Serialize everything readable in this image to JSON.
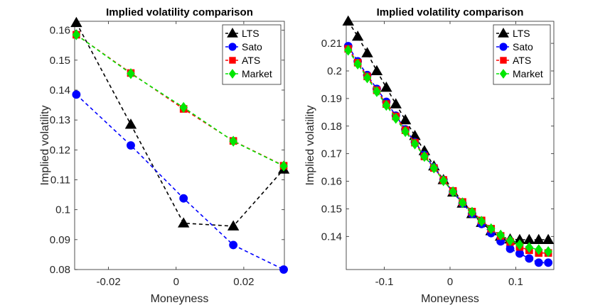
{
  "chart_data": [
    {
      "type": "line",
      "title": "Implied volatility comparison",
      "xlabel": "Moneyness",
      "ylabel": "Implied volatility",
      "xlim": [
        -0.03,
        0.032
      ],
      "ylim": [
        0.08,
        0.163
      ],
      "xticks": [
        -0.02,
        0,
        0.02
      ],
      "xtick_labels": [
        "-0.02",
        "0",
        "0.02"
      ],
      "yticks": [
        0.08,
        0.09,
        0.1,
        0.11,
        0.12,
        0.13,
        0.14,
        0.15,
        0.16
      ],
      "ytick_labels": [
        "0.08",
        "0.09",
        "0.1",
        "0.11",
        "0.12",
        "0.13",
        "0.14",
        "0.15",
        "0.16"
      ],
      "x": [
        -0.0295,
        -0.0134,
        0.0022,
        0.0169,
        0.0318
      ],
      "legend_position": "top-right",
      "series": [
        {
          "name": "LTS",
          "color": "#000000",
          "marker": "triangle",
          "values": [
            0.1625,
            0.1285,
            0.0955,
            0.0945,
            0.1135
          ]
        },
        {
          "name": "Sato",
          "color": "#0000ff",
          "marker": "circle",
          "values": [
            0.1385,
            0.1215,
            0.1038,
            0.0882,
            0.08
          ]
        },
        {
          "name": "ATS",
          "color": "#ff0000",
          "marker": "square",
          "values": [
            0.1585,
            0.1457,
            0.1337,
            0.123,
            0.1147
          ]
        },
        {
          "name": "Market",
          "color": "#00e600",
          "marker": "diamond",
          "values": [
            0.1585,
            0.1455,
            0.1342,
            0.1229,
            0.1146
          ]
        }
      ]
    },
    {
      "type": "line",
      "title": "Implied volatility comparison",
      "xlabel": "Moneyness",
      "ylabel": "Implied volatility",
      "xlim": [
        -0.158,
        0.158
      ],
      "ylim": [
        0.128,
        0.218
      ],
      "xticks": [
        -0.1,
        0,
        0.1
      ],
      "xtick_labels": [
        "-0.1",
        "0",
        "0.1"
      ],
      "yticks": [
        0.14,
        0.15,
        0.16,
        0.17,
        0.18,
        0.19,
        0.2,
        0.21
      ],
      "ytick_labels": [
        "0.14",
        "0.15",
        "0.16",
        "0.17",
        "0.18",
        "0.19",
        "0.2",
        "0.21"
      ],
      "x": [
        -0.155,
        -0.1405,
        -0.126,
        -0.1115,
        -0.097,
        -0.0825,
        -0.068,
        -0.0535,
        -0.039,
        -0.0245,
        -0.01,
        0.0045,
        0.019,
        0.0335,
        0.048,
        0.0625,
        0.077,
        0.0915,
        0.106,
        0.1205,
        0.135,
        0.1495
      ],
      "legend_position": "top-right",
      "series": [
        {
          "name": "LTS",
          "color": "#000000",
          "marker": "triangle",
          "values": [
            0.218,
            0.2125,
            0.2065,
            0.2,
            0.194,
            0.188,
            0.1822,
            0.1765,
            0.171,
            0.1655,
            0.1605,
            0.156,
            0.152,
            0.1482,
            0.145,
            0.142,
            0.14,
            0.139,
            0.1388,
            0.1388,
            0.1388,
            0.1388
          ]
        },
        {
          "name": "Sato",
          "color": "#0000ff",
          "marker": "circle",
          "values": [
            0.209,
            0.2035,
            0.1985,
            0.1935,
            0.1888,
            0.1838,
            0.1788,
            0.1742,
            0.1695,
            0.165,
            0.1605,
            0.1562,
            0.152,
            0.1482,
            0.1445,
            0.1412,
            0.1382,
            0.1355,
            0.1338,
            0.132,
            0.1305,
            0.1305
          ]
        },
        {
          "name": "ATS",
          "color": "#ff0000",
          "marker": "square",
          "values": [
            0.208,
            0.203,
            0.198,
            0.193,
            0.188,
            0.1835,
            0.1785,
            0.174,
            0.169,
            0.1648,
            0.1605,
            0.1565,
            0.1525,
            0.149,
            0.1458,
            0.1428,
            0.1402,
            0.138,
            0.1362,
            0.135,
            0.134,
            0.134
          ]
        },
        {
          "name": "Market",
          "color": "#00e600",
          "marker": "diamond",
          "values": [
            0.2075,
            0.2025,
            0.1975,
            0.1925,
            0.1875,
            0.1828,
            0.178,
            0.1735,
            0.169,
            0.1648,
            0.1602,
            0.1562,
            0.1522,
            0.1488,
            0.1455,
            0.1428,
            0.1405,
            0.1385,
            0.137,
            0.136,
            0.1352,
            0.1345
          ]
        }
      ]
    }
  ]
}
